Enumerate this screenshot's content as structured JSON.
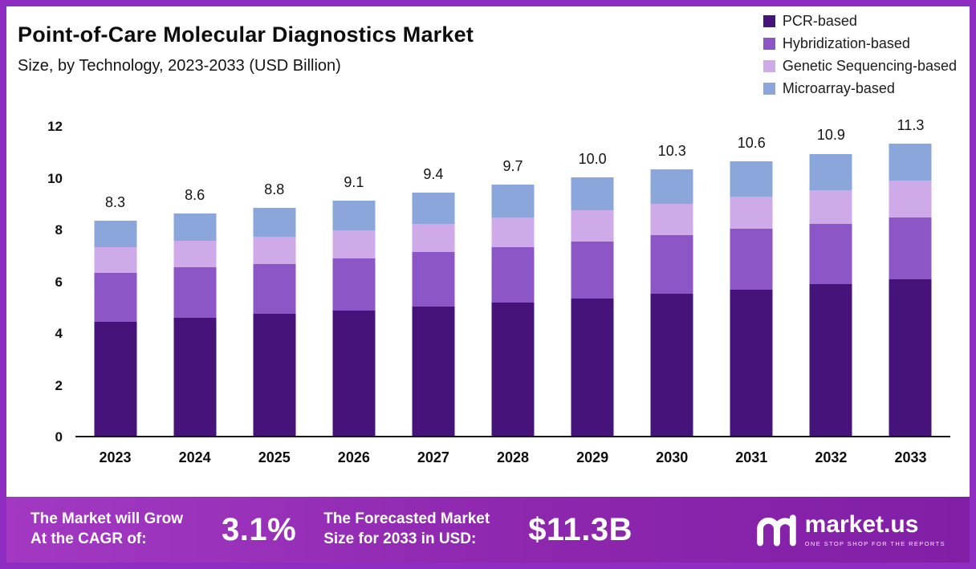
{
  "header": {
    "title": "Point-of-Care Molecular Diagnostics Market",
    "subtitle": "Size, by Technology, 2023-2033 (USD Billion)"
  },
  "chart_data": {
    "type": "bar",
    "stacked": true,
    "title": "Point-of-Care Molecular Diagnostics Market Size, by Technology, 2023-2033 (USD Billion)",
    "categories": [
      "2023",
      "2024",
      "2025",
      "2026",
      "2027",
      "2028",
      "2029",
      "2030",
      "2031",
      "2032",
      "2033"
    ],
    "series": [
      {
        "name": "PCR-based",
        "color": "#45137a",
        "values": [
          4.4,
          4.55,
          4.7,
          4.85,
          5.0,
          5.15,
          5.3,
          5.5,
          5.65,
          5.85,
          6.05
        ]
      },
      {
        "name": "Hybridization-based",
        "color": "#8d56c6",
        "values": [
          1.9,
          1.95,
          1.95,
          2.0,
          2.1,
          2.15,
          2.2,
          2.25,
          2.35,
          2.35,
          2.4
        ]
      },
      {
        "name": "Genetic Sequencing-based",
        "color": "#cfaae8",
        "values": [
          1.0,
          1.05,
          1.05,
          1.1,
          1.1,
          1.15,
          1.2,
          1.2,
          1.25,
          1.3,
          1.4
        ]
      },
      {
        "name": "Microarray-based",
        "color": "#8ba6da",
        "values": [
          1.0,
          1.05,
          1.1,
          1.15,
          1.2,
          1.25,
          1.3,
          1.35,
          1.35,
          1.4,
          1.45
        ]
      }
    ],
    "totals": [
      "8.3",
      "8.6",
      "8.8",
      "9.1",
      "9.4",
      "9.7",
      "10.0",
      "10.3",
      "10.6",
      "10.9",
      "11.3"
    ],
    "xlabel": "",
    "ylabel": "",
    "ylim": [
      0,
      12
    ],
    "yticks": [
      0,
      2,
      4,
      6,
      8,
      10,
      12
    ],
    "grid": false,
    "legend_position": "top-right"
  },
  "footer": {
    "cagr_label_line1": "The Market will Grow",
    "cagr_label_line2": "At the CAGR of:",
    "cagr_value": "3.1%",
    "forecast_label_line1": "The Forecasted Market",
    "forecast_label_line2": "Size for 2033 in USD:",
    "forecast_value": "$11.3B",
    "brand": "market.us",
    "brand_tagline": "ONE STOP SHOP FOR THE REPORTS"
  },
  "colors": {
    "frame_border": "#8f2cc1",
    "banner_left": "#a339c3",
    "banner_right": "#801fa6",
    "axis_line": "#161616",
    "text": "#111111"
  }
}
